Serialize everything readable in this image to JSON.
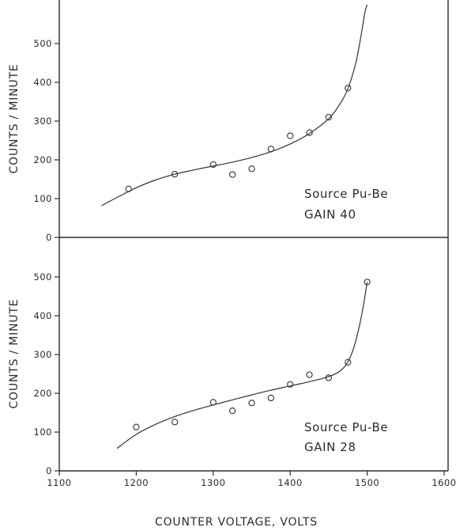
{
  "chart_data": [
    {
      "type": "scatter",
      "title": "",
      "ylabel": "COUNTS / MINUTE",
      "xlim": [
        1100,
        1600
      ],
      "ylim": [
        0,
        600
      ],
      "yticks": [
        "0",
        "100",
        "200",
        "300",
        "400",
        "500"
      ],
      "grid": false,
      "annotations": [
        "Source Pu-Be",
        "GAIN 40"
      ],
      "series": [
        {
          "kind": "points",
          "x": [
            1190,
            1250,
            1300,
            1325,
            1350,
            1375,
            1400,
            1425,
            1450,
            1475
          ],
          "y": [
            125,
            163,
            188,
            162,
            177,
            228,
            262,
            270,
            310,
            385
          ]
        },
        {
          "kind": "curve",
          "x": [
            1155,
            1175,
            1200,
            1225,
            1250,
            1275,
            1300,
            1325,
            1350,
            1375,
            1400,
            1425,
            1450,
            1465,
            1475,
            1485,
            1492,
            1497,
            1500
          ],
          "y": [
            82,
            103,
            128,
            148,
            163,
            174,
            184,
            194,
            206,
            221,
            241,
            268,
            306,
            345,
            384,
            448,
            520,
            580,
            600
          ]
        }
      ]
    },
    {
      "type": "scatter",
      "title": "",
      "xlabel": "COUNTER VOLTAGE, VOLTS",
      "ylabel": "COUNTS / MINUTE",
      "xlim": [
        1100,
        1600
      ],
      "ylim": [
        0,
        600
      ],
      "xticks": [
        "1100",
        "1200",
        "1300",
        "1400",
        "1500",
        "1600"
      ],
      "yticks": [
        "0",
        "100",
        "200",
        "300",
        "400",
        "500"
      ],
      "grid": false,
      "annotations": [
        "Source Pu-Be",
        "GAIN 28"
      ],
      "series": [
        {
          "kind": "points",
          "x": [
            1200,
            1250,
            1300,
            1325,
            1350,
            1375,
            1400,
            1425,
            1450,
            1475,
            1500
          ],
          "y": [
            113,
            126,
            177,
            155,
            175,
            188,
            223,
            248,
            240,
            280,
            487
          ]
        },
        {
          "kind": "curve",
          "x": [
            1175,
            1200,
            1225,
            1250,
            1275,
            1300,
            1325,
            1350,
            1375,
            1400,
            1425,
            1450,
            1465,
            1475,
            1483,
            1490,
            1495,
            1500
          ],
          "y": [
            58,
            94,
            120,
            140,
            156,
            170,
            183,
            196,
            208,
            219,
            230,
            243,
            258,
            281,
            320,
            375,
            425,
            487
          ]
        }
      ]
    }
  ]
}
